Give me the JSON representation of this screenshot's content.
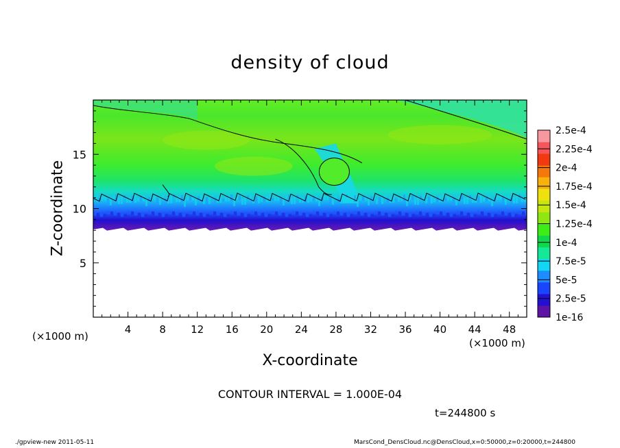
{
  "chart_data": {
    "type": "heatmap",
    "title": "density of cloud",
    "xlabel": "X-coordinate",
    "ylabel": "Z-coordinate",
    "x_unit_label": "(×1000 m)",
    "x_ticks": [
      4,
      8,
      12,
      16,
      20,
      24,
      28,
      32,
      36,
      40,
      44,
      48
    ],
    "y_ticks": [
      5,
      10,
      15
    ],
    "xlim": [
      0,
      50
    ],
    "ylim": [
      0,
      20
    ],
    "contour_interval_label": "CONTOUR INTERVAL = 1.000E-04",
    "time_label": "t=244800 s",
    "colorbar": {
      "labels": [
        "2.5e-4",
        "2.25e-4",
        "2e-4",
        "1.75e-4",
        "1.5e-4",
        "1.25e-4",
        "1e-4",
        "7.5e-5",
        "5e-5",
        "2.5e-5",
        "1e-16"
      ],
      "colors": [
        "#5d14a6",
        "#2410d0",
        "#1a45ff",
        "#1e8cff",
        "#13d6f2",
        "#16e89a",
        "#0fd94a",
        "#3ded17",
        "#8fe612",
        "#c6e60f",
        "#f0e010",
        "#f7b20c",
        "#f6780b",
        "#f23a10",
        "#f6555a",
        "#f798a0"
      ]
    },
    "cloud_field": {
      "base_z": 8.1,
      "dense_layer_top_z": 9.8,
      "moist_layer_top_z": 11.3,
      "top_z": 20,
      "plume_x": 30,
      "dominant_value": "1e-4 to 1.5e-4"
    }
  },
  "footer": {
    "left": "./gpview-new  2011-05-11",
    "right": "MarsCond_DensCloud.nc@DensCloud,x=0:50000,z=0:20000,t=244800"
  }
}
